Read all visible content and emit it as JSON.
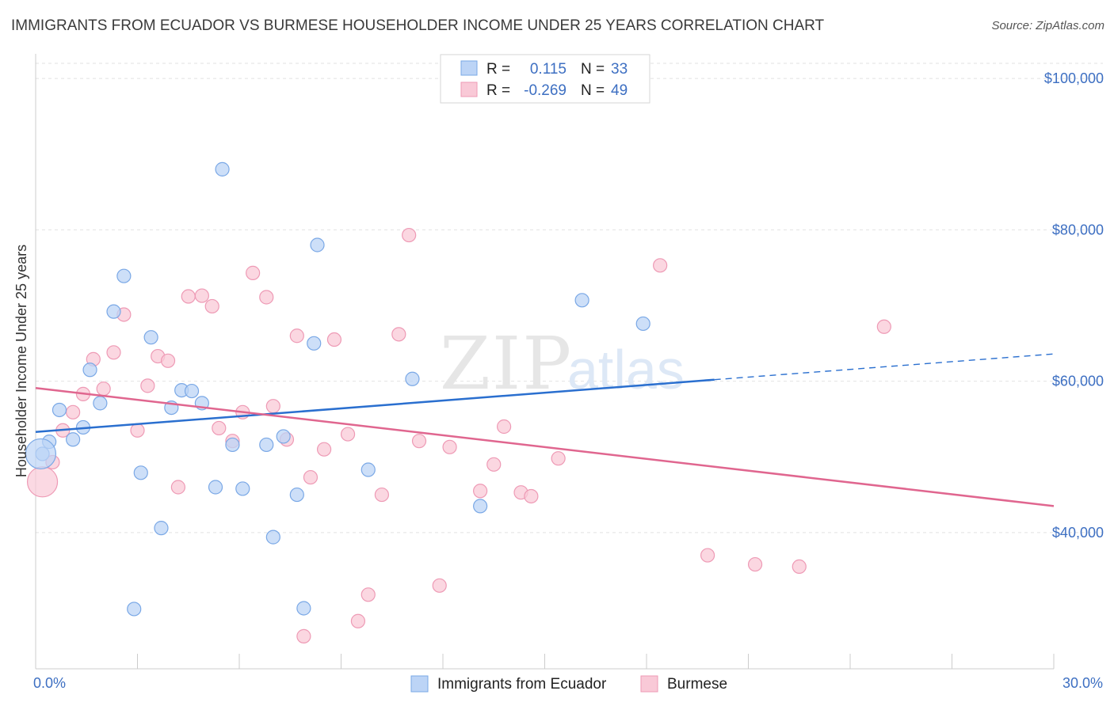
{
  "title": "IMMIGRANTS FROM ECUADOR VS BURMESE HOUSEHOLDER INCOME UNDER 25 YEARS CORRELATION CHART",
  "source": "Source: ZipAtlas.com",
  "watermark": {
    "zip": "ZIP",
    "atlas": "atlas"
  },
  "legend": {
    "rows": [
      {
        "r_label": "R =",
        "r_value": "0.115",
        "n_label": "N =",
        "n_value": "33"
      },
      {
        "r_label": "R =",
        "r_value": "-0.269",
        "n_label": "N =",
        "n_value": "49"
      }
    ]
  },
  "bottom_legend": [
    "Immigrants from Ecuador",
    "Burmese"
  ],
  "chart_data": {
    "type": "scatter",
    "title": "IMMIGRANTS FROM ECUADOR VS BURMESE HOUSEHOLDER INCOME UNDER 25 YEARS CORRELATION CHART",
    "xlabel": "",
    "ylabel": "Householder Income Under 25 years",
    "xlim": [
      0,
      30
    ],
    "ylim": [
      22000,
      102000
    ],
    "x_tick_labels": [
      "0.0%",
      "30.0%"
    ],
    "y_ticks": [
      40000,
      60000,
      80000,
      100000
    ],
    "y_tick_labels": [
      "$40,000",
      "$60,000",
      "$80,000",
      "$100,000"
    ],
    "grid": true,
    "legend_position": "top-center",
    "series": [
      {
        "name": "Immigrants from Ecuador",
        "color": "#7aa8e6",
        "fill": "#bcd4f6",
        "trend": {
          "x": [
            0,
            20
          ],
          "y": [
            53300,
            60200
          ],
          "dashed_to": [
            30,
            63600
          ],
          "color": "#2a6fcf"
        },
        "points": [
          [
            0.2,
            50400
          ],
          [
            0.4,
            52000
          ],
          [
            0.7,
            56200
          ],
          [
            1.1,
            52300
          ],
          [
            1.4,
            53900
          ],
          [
            1.6,
            61500
          ],
          [
            1.9,
            57100
          ],
          [
            2.3,
            69200
          ],
          [
            2.6,
            73900
          ],
          [
            2.9,
            29900
          ],
          [
            3.1,
            47900
          ],
          [
            3.4,
            65800
          ],
          [
            3.7,
            40600
          ],
          [
            4.0,
            56500
          ],
          [
            4.3,
            58800
          ],
          [
            4.6,
            58700
          ],
          [
            4.9,
            57100
          ],
          [
            5.3,
            46000
          ],
          [
            5.5,
            88000
          ],
          [
            5.8,
            51600
          ],
          [
            6.1,
            45800
          ],
          [
            6.8,
            51600
          ],
          [
            7.0,
            39400
          ],
          [
            7.3,
            52700
          ],
          [
            7.7,
            45000
          ],
          [
            7.9,
            30000
          ],
          [
            8.2,
            65000
          ],
          [
            8.3,
            78000
          ],
          [
            9.8,
            48300
          ],
          [
            11.1,
            60300
          ],
          [
            13.1,
            43500
          ],
          [
            16.1,
            70700
          ],
          [
            17.9,
            67600
          ]
        ],
        "big_points": [
          [
            0.15,
            50400
          ]
        ]
      },
      {
        "name": "Burmese",
        "color": "#ee9ab5",
        "fill": "#f9c9d7",
        "trend": {
          "x": [
            0,
            30
          ],
          "y": [
            59100,
            43500
          ],
          "color": "#e0668f"
        },
        "points": [
          [
            0.5,
            49300
          ],
          [
            0.8,
            53500
          ],
          [
            1.1,
            55900
          ],
          [
            1.4,
            58300
          ],
          [
            1.7,
            62900
          ],
          [
            2.0,
            59000
          ],
          [
            2.3,
            63800
          ],
          [
            2.6,
            68800
          ],
          [
            3.0,
            53500
          ],
          [
            3.3,
            59400
          ],
          [
            3.6,
            63300
          ],
          [
            3.9,
            62700
          ],
          [
            4.2,
            46000
          ],
          [
            4.5,
            71200
          ],
          [
            4.9,
            71300
          ],
          [
            5.2,
            69900
          ],
          [
            5.4,
            53800
          ],
          [
            5.8,
            52100
          ],
          [
            6.1,
            55900
          ],
          [
            6.4,
            74300
          ],
          [
            6.8,
            71100
          ],
          [
            7.0,
            56700
          ],
          [
            7.4,
            52300
          ],
          [
            7.7,
            66000
          ],
          [
            7.9,
            26300
          ],
          [
            8.1,
            47300
          ],
          [
            8.5,
            51000
          ],
          [
            8.8,
            65500
          ],
          [
            9.2,
            53000
          ],
          [
            9.5,
            28300
          ],
          [
            9.8,
            31800
          ],
          [
            10.2,
            45000
          ],
          [
            10.7,
            66200
          ],
          [
            11.0,
            79300
          ],
          [
            11.3,
            52100
          ],
          [
            11.9,
            33000
          ],
          [
            12.2,
            51300
          ],
          [
            13.1,
            45500
          ],
          [
            13.5,
            49000
          ],
          [
            13.8,
            54000
          ],
          [
            14.3,
            45300
          ],
          [
            14.6,
            44800
          ],
          [
            15.4,
            49800
          ],
          [
            18.4,
            75300
          ],
          [
            19.8,
            37000
          ],
          [
            21.2,
            35800
          ],
          [
            22.5,
            35500
          ],
          [
            25.0,
            67200
          ]
        ],
        "big_points": [
          [
            0.2,
            46700
          ]
        ]
      }
    ]
  }
}
